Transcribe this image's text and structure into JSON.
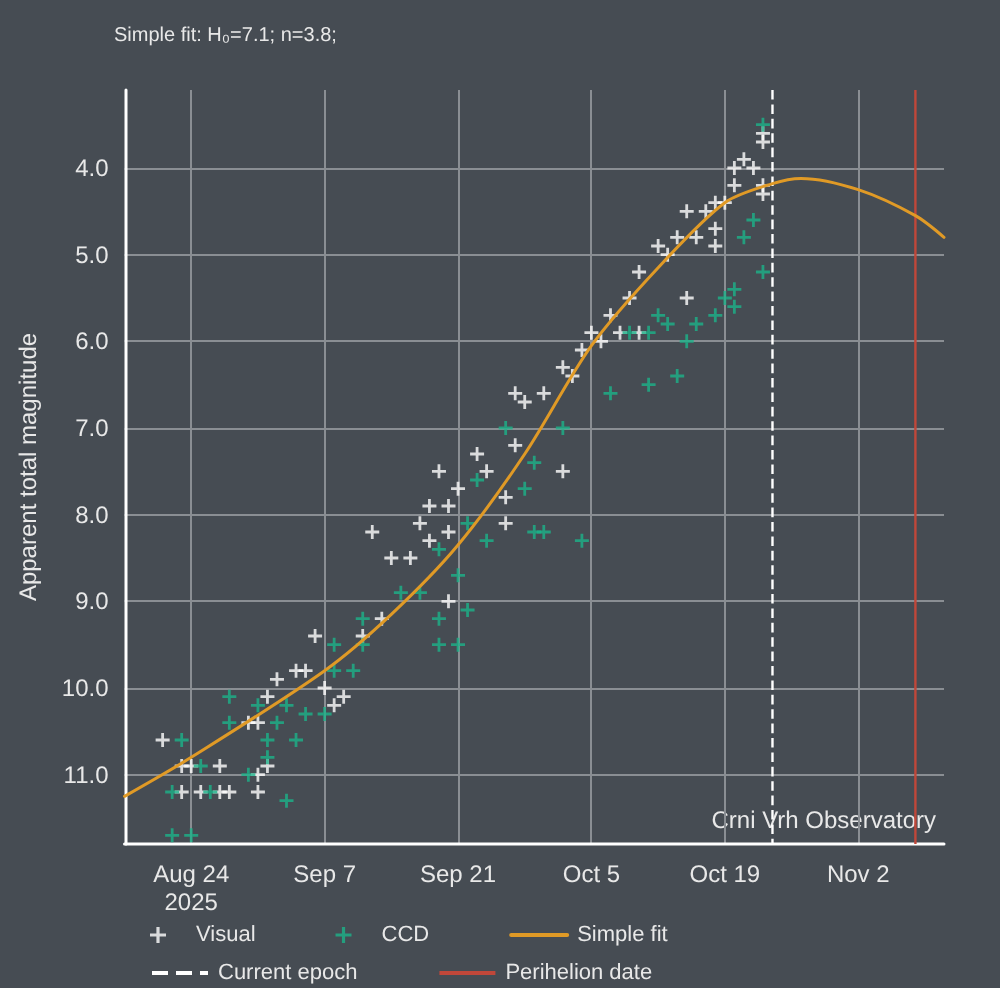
{
  "chart_data": {
    "type": "scatter",
    "title": "Simple fit: H₀=7.1; n=3.8;",
    "ylabel": "Apparent total magnitude",
    "xlim": [
      "2025-08-17",
      "2025-11-11"
    ],
    "xticks": [
      {
        "value": "2025-08-24",
        "label": "Aug 24\n2025"
      },
      {
        "value": "2025-09-07",
        "label": "Sep 7"
      },
      {
        "value": "2025-09-21",
        "label": "Sep 21"
      },
      {
        "value": "2025-10-05",
        "label": "Oct 5"
      },
      {
        "value": "2025-10-19",
        "label": "Oct 19"
      },
      {
        "value": "2025-11-02",
        "label": "Nov 2"
      }
    ],
    "ylim": [
      11.8,
      3.1
    ],
    "yticks": [
      {
        "value": 4,
        "label": "4.0"
      },
      {
        "value": 5,
        "label": "5.0"
      },
      {
        "value": 6,
        "label": "6.0"
      },
      {
        "value": 7,
        "label": "7.0"
      },
      {
        "value": 8,
        "label": "8.0"
      },
      {
        "value": 9,
        "label": "9.0"
      },
      {
        "value": 10,
        "label": "10.0"
      },
      {
        "value": 11,
        "label": "11.0"
      }
    ],
    "grid": true,
    "legend": "bottom",
    "marker": "cross",
    "series": [
      {
        "name": "Visual",
        "color": "#ffffff",
        "x": [
          "2025-08-21",
          "2025-08-23",
          "2025-08-24",
          "2025-08-23",
          "2025-08-25",
          "2025-08-27",
          "2025-08-28",
          "2025-08-27",
          "2025-08-30",
          "2025-08-31",
          "2025-08-31",
          "2025-08-31",
          "2025-09-01",
          "2025-09-02",
          "2025-09-01",
          "2025-09-04",
          "2025-09-05",
          "2025-09-06",
          "2025-09-07",
          "2025-09-08",
          "2025-09-09",
          "2025-09-12",
          "2025-09-11",
          "2025-09-13",
          "2025-09-14",
          "2025-09-16",
          "2025-09-17",
          "2025-09-18",
          "2025-09-18",
          "2025-09-19",
          "2025-09-20",
          "2025-09-20",
          "2025-09-21",
          "2025-09-20",
          "2025-09-23",
          "2025-09-24",
          "2025-09-26",
          "2025-09-26",
          "2025-09-27",
          "2025-09-27",
          "2025-09-28",
          "2025-09-30",
          "2025-10-02",
          "2025-10-02",
          "2025-10-03",
          "2025-10-04",
          "2025-10-06",
          "2025-10-05",
          "2025-10-07",
          "2025-10-08",
          "2025-10-09",
          "2025-10-10",
          "2025-10-10",
          "2025-10-12",
          "2025-10-13",
          "2025-10-14",
          "2025-10-15",
          "2025-10-15",
          "2025-10-16",
          "2025-10-17",
          "2025-10-18",
          "2025-10-18",
          "2025-10-18",
          "2025-10-19",
          "2025-10-20",
          "2025-10-20",
          "2025-10-21",
          "2025-10-22",
          "2025-10-23",
          "2025-10-23",
          "2025-10-23",
          "2025-10-23"
        ],
        "values": [
          10.6,
          10.9,
          10.9,
          11.2,
          11.2,
          11.2,
          11.2,
          10.9,
          10.4,
          10.4,
          11.0,
          11.2,
          10.9,
          9.9,
          10.1,
          9.8,
          9.8,
          9.4,
          10.0,
          10.2,
          10.1,
          8.2,
          9.4,
          9.2,
          8.5,
          8.5,
          8.1,
          7.9,
          8.3,
          7.5,
          7.9,
          8.2,
          7.7,
          9.0,
          7.3,
          7.5,
          7.8,
          8.1,
          7.2,
          6.6,
          6.7,
          6.6,
          7.5,
          6.3,
          6.4,
          6.1,
          6.0,
          5.9,
          5.7,
          5.9,
          5.5,
          5.9,
          5.2,
          4.9,
          5.0,
          4.8,
          5.5,
          4.5,
          4.8,
          4.5,
          4.4,
          4.7,
          4.9,
          4.4,
          4.0,
          4.2,
          3.9,
          4.0,
          4.2,
          3.7,
          3.6,
          4.3
        ]
      },
      {
        "name": "CCD",
        "color": "#1bb38a",
        "x": [
          "2025-08-23",
          "2025-08-22",
          "2025-08-22",
          "2025-08-24",
          "2025-08-25",
          "2025-08-26",
          "2025-08-28",
          "2025-08-28",
          "2025-08-30",
          "2025-08-31",
          "2025-09-01",
          "2025-09-01",
          "2025-09-03",
          "2025-09-02",
          "2025-09-04",
          "2025-09-03",
          "2025-09-05",
          "2025-09-07",
          "2025-09-08",
          "2025-09-10",
          "2025-09-08",
          "2025-09-11",
          "2025-09-11",
          "2025-09-15",
          "2025-09-17",
          "2025-09-19",
          "2025-09-19",
          "2025-09-21",
          "2025-09-22",
          "2025-09-21",
          "2025-09-19",
          "2025-09-22",
          "2025-09-24",
          "2025-09-23",
          "2025-09-28",
          "2025-09-29",
          "2025-09-26",
          "2025-09-29",
          "2025-10-02",
          "2025-10-07",
          "2025-10-11",
          "2025-10-14",
          "2025-10-09",
          "2025-10-11",
          "2025-10-12",
          "2025-10-13",
          "2025-10-15",
          "2025-10-16",
          "2025-10-18",
          "2025-10-19",
          "2025-10-20",
          "2025-10-20",
          "2025-10-21",
          "2025-10-22",
          "2025-10-23",
          "2025-10-23",
          "2025-09-30",
          "2025-10-04"
        ],
        "values": [
          10.6,
          11.2,
          11.7,
          11.7,
          10.9,
          11.2,
          10.4,
          10.1,
          11.0,
          10.2,
          10.8,
          10.6,
          11.3,
          10.4,
          10.6,
          10.2,
          10.3,
          10.3,
          9.8,
          9.8,
          9.5,
          9.2,
          9.5,
          8.9,
          8.9,
          9.2,
          9.5,
          9.5,
          9.1,
          8.7,
          8.4,
          8.1,
          8.3,
          7.6,
          7.7,
          8.2,
          7.0,
          7.4,
          7.0,
          6.6,
          6.5,
          6.4,
          5.9,
          5.9,
          5.7,
          5.8,
          6.0,
          5.8,
          5.7,
          5.5,
          5.6,
          5.4,
          4.8,
          4.6,
          5.2,
          3.5,
          8.2,
          8.3
        ]
      },
      {
        "name": "Simple fit",
        "type": "line",
        "marker": "none",
        "color": "#e09a26",
        "x": [
          "2025-08-17",
          "2025-08-24",
          "2025-09-07",
          "2025-09-14",
          "2025-09-21",
          "2025-09-28",
          "2025-10-05",
          "2025-10-12",
          "2025-10-19",
          "2025-10-24",
          "2025-10-27",
          "2025-11-02",
          "2025-11-08",
          "2025-11-11"
        ],
        "values": [
          11.25,
          10.8,
          9.8,
          9.15,
          8.35,
          7.3,
          6.05,
          5.15,
          4.4,
          4.18,
          4.12,
          4.25,
          4.55,
          4.8
        ]
      }
    ],
    "ref_lines": [
      {
        "axis": "x",
        "value": "2025-10-24",
        "label": "Current epoch",
        "color": "#ffffff",
        "line_style": "dashed"
      },
      {
        "axis": "x",
        "value": "2025-11-08",
        "label": "Perihelion date",
        "color": "#c0473a"
      }
    ],
    "annotations": [
      "Crni Vrh Observatory"
    ]
  }
}
